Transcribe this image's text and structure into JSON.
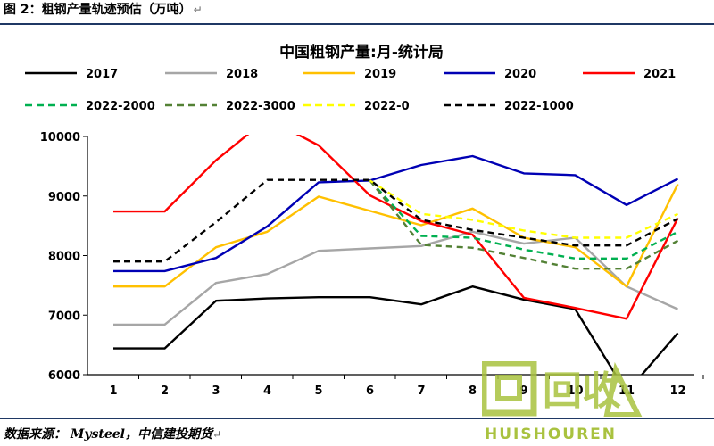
{
  "figure": {
    "label": "图 2：粗钢产量轨迹预估（万吨）",
    "return_mark": "↵"
  },
  "source": {
    "text": "数据来源： Mysteel，中信建投期货",
    "return_mark": "↵"
  },
  "watermark": {
    "text": "HUISHOUREN",
    "logo_text": "回收"
  },
  "chart_data": {
    "type": "line",
    "title": "中国粗钢产量:月-统计局",
    "xlabel": "",
    "ylabel": "",
    "x": [
      1,
      2,
      3,
      4,
      5,
      6,
      7,
      8,
      9,
      10,
      11,
      12
    ],
    "x_tick_labels": [
      "1",
      "2",
      "3",
      "4",
      "5",
      "6",
      "7",
      "8",
      "9",
      "10",
      "11",
      "12"
    ],
    "ylim": [
      6000,
      10000
    ],
    "y_ticks": [
      6000,
      7000,
      8000,
      9000,
      10000
    ],
    "grid": false,
    "legend_position": "top",
    "series": [
      {
        "name": "2017",
        "color": "#000000",
        "dashed": false,
        "values": [
          6440,
          6440,
          7240,
          7280,
          7300,
          7300,
          7180,
          7480,
          7260,
          7100,
          5700,
          6700
        ]
      },
      {
        "name": "2018",
        "color": "#a6a6a6",
        "dashed": false,
        "values": [
          6840,
          6840,
          7540,
          7690,
          8080,
          8120,
          8160,
          8400,
          8200,
          8300,
          7480,
          7100
        ]
      },
      {
        "name": "2019",
        "color": "#ffc000",
        "dashed": false,
        "values": [
          7480,
          7480,
          8140,
          8400,
          8990,
          8750,
          8510,
          8790,
          8300,
          8140,
          7480,
          9200
        ]
      },
      {
        "name": "2020",
        "color": "#0000b4",
        "dashed": false,
        "values": [
          7740,
          7740,
          7960,
          8490,
          9230,
          9260,
          9520,
          9670,
          9380,
          9350,
          8850,
          9290
        ]
      },
      {
        "name": "2021",
        "color": "#ff0000",
        "dashed": false,
        "values": [
          8740,
          8740,
          9600,
          10300,
          9850,
          9010,
          8580,
          8350,
          7290,
          7120,
          6940,
          8630
        ]
      },
      {
        "name": "2022-2000",
        "color": "#00b050",
        "dashed": true,
        "values": [
          null,
          null,
          null,
          null,
          null,
          9260,
          8330,
          8300,
          8100,
          7950,
          7950,
          8400
        ]
      },
      {
        "name": "2022-3000",
        "color": "#538135",
        "dashed": true,
        "values": [
          null,
          null,
          null,
          null,
          null,
          9260,
          8180,
          8130,
          7960,
          7780,
          7780,
          8250
        ]
      },
      {
        "name": "2022-0",
        "color": "#ffff00",
        "dashed": true,
        "values": [
          null,
          null,
          null,
          null,
          null,
          9260,
          8700,
          8600,
          8420,
          8300,
          8300,
          8700
        ]
      },
      {
        "name": "2022-1000",
        "color": "#000000",
        "dashed": true,
        "values": [
          7900,
          7900,
          8560,
          9270,
          9270,
          9270,
          8600,
          8430,
          8300,
          8170,
          8170,
          8620
        ]
      }
    ]
  }
}
